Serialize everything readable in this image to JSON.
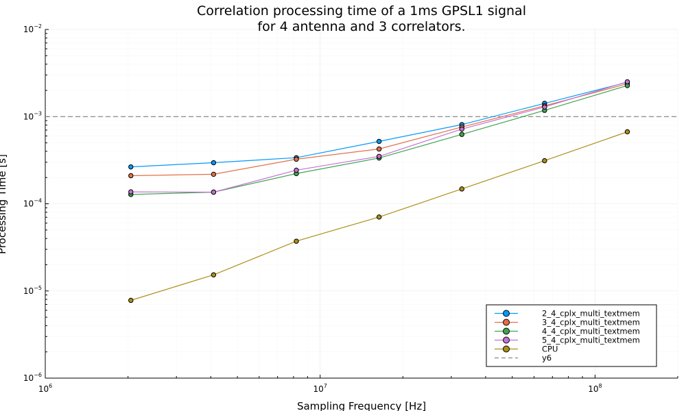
{
  "chart_data": {
    "type": "line",
    "title": [
      "Correlation processing time of a 1ms GPSL1 signal",
      "for 4 antenna and 3 correlators."
    ],
    "xlabel": "Sampling Frequency [Hz]",
    "ylabel": "Processing Time [s]",
    "xscale": "log",
    "yscale": "log",
    "xlim": [
      1000000,
      200000000
    ],
    "ylim": [
      1e-06,
      0.01
    ],
    "xticks": [
      {
        "value": 1000000,
        "base": "10",
        "exp": "6"
      },
      {
        "value": 10000000,
        "base": "10",
        "exp": "7"
      },
      {
        "value": 100000000,
        "base": "10",
        "exp": "8"
      }
    ],
    "yticks": [
      {
        "value": 1e-06,
        "base": "10",
        "exp": "−6"
      },
      {
        "value": 1e-05,
        "base": "10",
        "exp": "−5"
      },
      {
        "value": 0.0001,
        "base": "10",
        "exp": "−4"
      },
      {
        "value": 0.001,
        "base": "10",
        "exp": "−3"
      },
      {
        "value": 0.01,
        "base": "10",
        "exp": "−2"
      }
    ],
    "grid": true,
    "legend_position": "bottom-right",
    "x": [
      2048000,
      4096000,
      8192000,
      16384000,
      32768000,
      65536000,
      131072000
    ],
    "series": [
      {
        "name": "2_4_cplx_multi_textmem",
        "color": "#009AFA",
        "marker": "circle",
        "values": [
          0.000265,
          0.000296,
          0.000338,
          0.00052,
          0.00081,
          0.00142,
          0.00248
        ]
      },
      {
        "name": "3_4_cplx_multi_textmem",
        "color": "#E36F47",
        "marker": "circle",
        "values": [
          0.00021,
          0.000218,
          0.000325,
          0.000425,
          0.00076,
          0.00133,
          0.00238
        ]
      },
      {
        "name": "4_4_cplx_multi_textmem",
        "color": "#3EA44E",
        "marker": "circle",
        "values": [
          0.000128,
          0.000136,
          0.000222,
          0.000335,
          0.000625,
          0.00118,
          0.00227
        ]
      },
      {
        "name": "5_4_cplx_multi_textmem",
        "color": "#C371D2",
        "marker": "circle",
        "values": [
          0.000137,
          0.000136,
          0.000243,
          0.00035,
          0.00072,
          0.00129,
          0.00251
        ]
      },
      {
        "name": "CPU",
        "color": "#AC8E18",
        "marker": "circle",
        "values": [
          7.8e-06,
          1.53e-05,
          3.72e-05,
          7.05e-05,
          0.000148,
          0.000312,
          0.00067
        ]
      }
    ],
    "hlines": [
      {
        "name": "y6",
        "value": 0.001,
        "color": "#888888",
        "style": "dashed"
      }
    ]
  }
}
